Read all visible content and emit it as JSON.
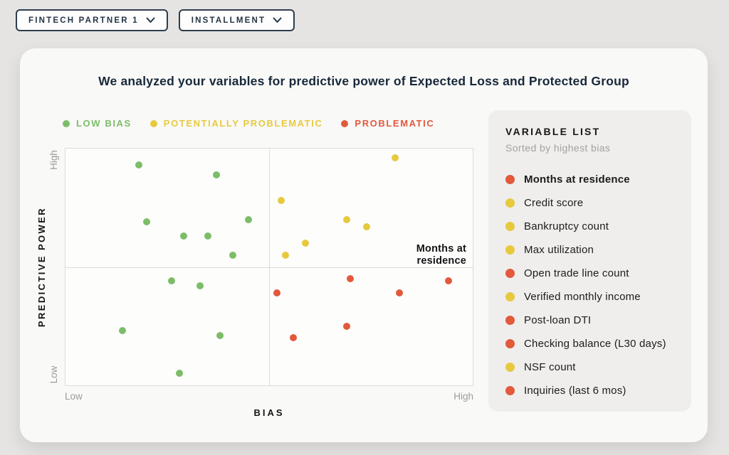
{
  "toolbar": {
    "partner_dropdown": "FINTECH PARTNER 1",
    "product_dropdown": "INSTALLMENT"
  },
  "card": {
    "title": "We analyzed your variables for predictive power of Expected Loss and Protected Group"
  },
  "colors": {
    "low_bias": "#7cbd68",
    "potentially_problematic": "#e7c93e",
    "problematic": "#e2593c"
  },
  "legend": {
    "items": [
      {
        "label": "LOW BIAS",
        "severity": "low_bias"
      },
      {
        "label": "POTENTIALLY PROBLEMATIC",
        "severity": "potentially_problematic"
      },
      {
        "label": "PROBLEMATIC",
        "severity": "problematic"
      }
    ]
  },
  "chart_data": {
    "type": "scatter",
    "xlabel": "BIAS",
    "ylabel": "PREDICTIVE POWER",
    "x_axis_end_labels": {
      "low": "Low",
      "high": "High"
    },
    "y_axis_end_labels": {
      "low": "Low",
      "high": "High"
    },
    "xlim": [
      0,
      100
    ],
    "ylim": [
      0,
      100
    ],
    "grid": false,
    "quadrant_lines": true,
    "legend_position": "top",
    "annotation": {
      "text": "Months at residence",
      "x": 94,
      "y": 44
    },
    "series": [
      {
        "name": "LOW BIAS",
        "severity": "low_bias",
        "points": [
          {
            "x": 18,
            "y": 93
          },
          {
            "x": 37,
            "y": 89
          },
          {
            "x": 45,
            "y": 70
          },
          {
            "x": 20,
            "y": 69
          },
          {
            "x": 29,
            "y": 63
          },
          {
            "x": 35,
            "y": 63
          },
          {
            "x": 41,
            "y": 55
          },
          {
            "x": 26,
            "y": 44
          },
          {
            "x": 33,
            "y": 42
          },
          {
            "x": 14,
            "y": 23
          },
          {
            "x": 38,
            "y": 21
          },
          {
            "x": 28,
            "y": 5
          }
        ]
      },
      {
        "name": "POTENTIALLY PROBLEMATIC",
        "severity": "potentially_problematic",
        "points": [
          {
            "x": 81,
            "y": 96
          },
          {
            "x": 53,
            "y": 78
          },
          {
            "x": 69,
            "y": 70
          },
          {
            "x": 74,
            "y": 67
          },
          {
            "x": 59,
            "y": 60
          },
          {
            "x": 54,
            "y": 55
          }
        ]
      },
      {
        "name": "PROBLEMATIC",
        "severity": "problematic",
        "points": [
          {
            "x": 94,
            "y": 44
          },
          {
            "x": 70,
            "y": 45
          },
          {
            "x": 82,
            "y": 39
          },
          {
            "x": 52,
            "y": 39
          },
          {
            "x": 69,
            "y": 25
          },
          {
            "x": 56,
            "y": 20
          }
        ]
      }
    ]
  },
  "variable_list": {
    "title": "VARIABLE LIST",
    "subtitle": "Sorted by highest bias",
    "items": [
      {
        "label": "Months at residence",
        "severity": "problematic",
        "highlighted": true
      },
      {
        "label": "Credit score",
        "severity": "potentially_problematic",
        "highlighted": false
      },
      {
        "label": "Bankruptcy count",
        "severity": "potentially_problematic",
        "highlighted": false
      },
      {
        "label": "Max utilization",
        "severity": "potentially_problematic",
        "highlighted": false
      },
      {
        "label": "Open trade line count",
        "severity": "problematic",
        "highlighted": false
      },
      {
        "label": "Verified monthly income",
        "severity": "potentially_problematic",
        "highlighted": false
      },
      {
        "label": "Post-loan DTI",
        "severity": "problematic",
        "highlighted": false
      },
      {
        "label": "Checking balance (L30 days)",
        "severity": "problematic",
        "highlighted": false
      },
      {
        "label": "NSF count",
        "severity": "potentially_problematic",
        "highlighted": false
      },
      {
        "label": "Inquiries (last 6 mos)",
        "severity": "problematic",
        "highlighted": false
      }
    ]
  }
}
